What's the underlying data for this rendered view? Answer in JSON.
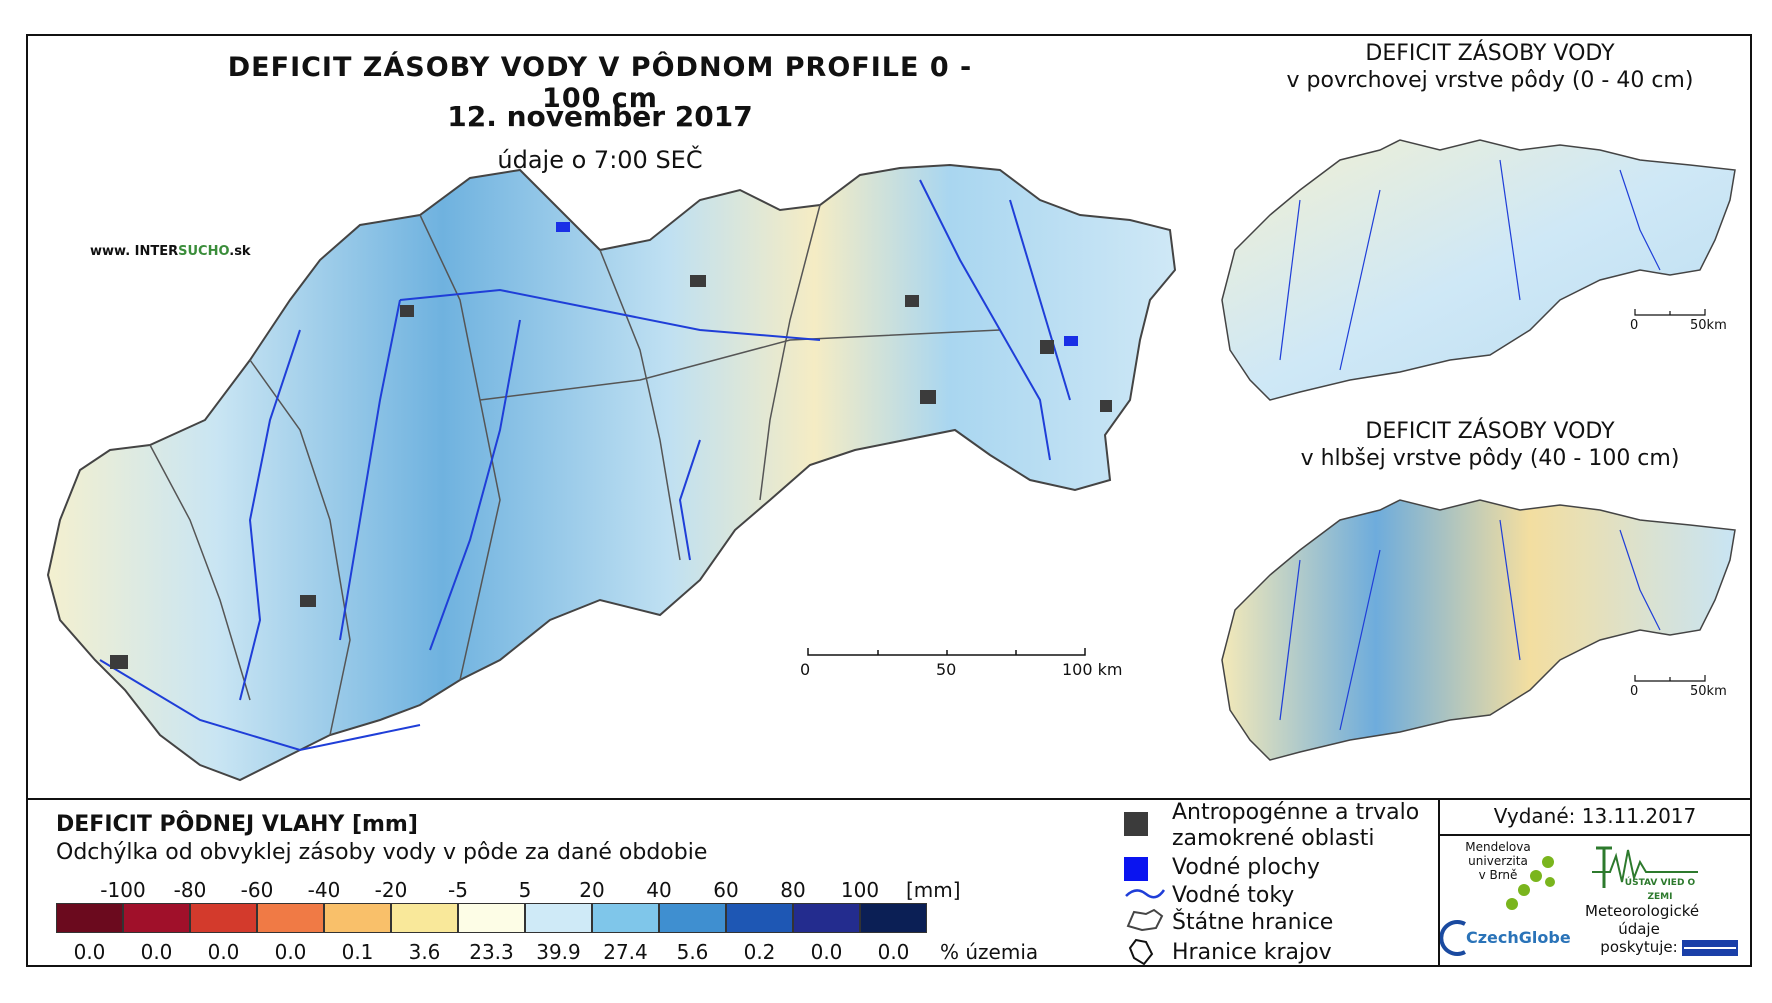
{
  "header": {
    "title": "DEFICIT ZÁSOBY VODY V PÔDNOM PROFILE 0 - 100 cm",
    "date": "12. november 2017",
    "time": "údaje o 7:00 SEČ",
    "site_pre": "www. INTER",
    "site_mid": "SUCHO",
    "site_post": ".sk"
  },
  "inset_top": {
    "line1": "DEFICIT ZÁSOBY VODY",
    "line2": "v povrchovej vrstve pôdy (0 - 40 cm)",
    "scale_0": "0",
    "scale_end": "50km"
  },
  "inset_bottom": {
    "line1": "DEFICIT ZÁSOBY VODY",
    "line2": "v hlbšej vrstve pôdy (40 - 100 cm)",
    "scale_0": "0",
    "scale_end": "50km"
  },
  "main_scale": {
    "l0": "0",
    "l50": "50",
    "l100": "100 km"
  },
  "legend": {
    "title": "DEFICIT PÔDNEJ VLAHY [mm]",
    "subtitle": "Odchýlka od obvyklej zásoby vody v pôde za dané obdobie",
    "ticks": [
      "-100",
      "-80",
      "-60",
      "-40",
      "-20",
      "-5",
      "5",
      "20",
      "40",
      "60",
      "80",
      "100"
    ],
    "unit": "[mm]",
    "colors": [
      "#6b0a1e",
      "#a0102a",
      "#d33a2c",
      "#f07a45",
      "#f9c06a",
      "#f9e89a",
      "#fdfde6",
      "#cfeaf7",
      "#7fc6ea",
      "#3f8fd0",
      "#1e57b4",
      "#232c8e",
      "#0b1f55"
    ],
    "percents": [
      "0.0",
      "0.0",
      "0.0",
      "0.0",
      "0.1",
      "3.6",
      "23.3",
      "39.9",
      "27.4",
      "5.6",
      "0.2",
      "0.0",
      "0.0"
    ],
    "percent_unit": "% územia"
  },
  "key": {
    "urban_1": "Antropogénne a trvalo",
    "urban_2": "zamokrené oblasti",
    "water_bodies": "Vodné plochy",
    "rivers": "Vodné toky",
    "state_border": "Štátne hranice",
    "region_border": "Hranice krajov"
  },
  "issued": "Vydané: 13.11.2017",
  "logos": {
    "mendel": "Mendelova\nuniverzita\nv Brně",
    "czechglobe": "CzechGlobe",
    "uvoz": "ÚSTAV VIED O ZEMI",
    "meteo": "Meteorologické\núdaje\nposkytuje:"
  }
}
